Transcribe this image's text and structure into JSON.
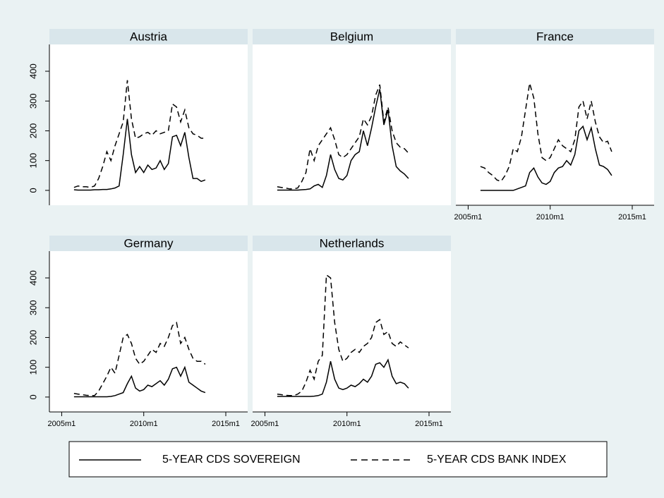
{
  "chart_data": [
    {
      "type": "line",
      "title": "Austria",
      "x": [
        549,
        552,
        555,
        558,
        561,
        564,
        567,
        570,
        573,
        576,
        579,
        582,
        585,
        588,
        591,
        594,
        597,
        600,
        603,
        606,
        609,
        612,
        615,
        618,
        621,
        624,
        627,
        630,
        633,
        636,
        639,
        642,
        645
      ],
      "xlim": [
        531,
        676
      ],
      "ylim": [
        -50,
        490
      ],
      "yticks": [
        0,
        100,
        200,
        300,
        400
      ],
      "series": [
        {
          "name": "5-YEAR CDS SOVEREIGN",
          "color": "#000000",
          "dashed": false,
          "values": [
            2,
            1,
            1,
            1,
            1,
            2,
            2,
            3,
            3,
            5,
            8,
            15,
            120,
            240,
            120,
            60,
            80,
            60,
            85,
            70,
            75,
            100,
            70,
            90,
            180,
            185,
            150,
            195,
            110,
            40,
            40,
            30,
            35
          ]
        },
        {
          "name": "5-YEAR CDS BANK INDEX",
          "color": "#000000",
          "dashed": true,
          "values": [
            10,
            15,
            12,
            12,
            10,
            15,
            40,
            80,
            130,
            100,
            150,
            190,
            230,
            370,
            240,
            175,
            180,
            190,
            195,
            185,
            200,
            190,
            195,
            200,
            290,
            280,
            230,
            270,
            210,
            190,
            185,
            175,
            175
          ]
        }
      ]
    },
    {
      "type": "line",
      "title": "Belgium",
      "x": [
        549,
        552,
        555,
        558,
        561,
        564,
        567,
        570,
        573,
        576,
        579,
        582,
        585,
        588,
        591,
        594,
        597,
        600,
        603,
        606,
        609,
        612,
        615,
        618,
        621,
        624,
        627,
        630,
        633,
        636,
        639,
        642,
        645
      ],
      "xlim": [
        531,
        676
      ],
      "ylim": [
        -50,
        490
      ],
      "series": [
        {
          "color": "#000000",
          "dashed": false,
          "values": [
            1,
            1,
            1,
            1,
            1,
            1,
            2,
            3,
            5,
            15,
            20,
            10,
            50,
            120,
            70,
            40,
            35,
            50,
            100,
            120,
            130,
            200,
            150,
            210,
            280,
            340,
            220,
            270,
            150,
            80,
            65,
            55,
            40
          ]
        },
        {
          "color": "#000000",
          "dashed": true,
          "values": [
            12,
            10,
            8,
            5,
            5,
            8,
            30,
            60,
            140,
            100,
            150,
            170,
            190,
            210,
            170,
            120,
            110,
            120,
            140,
            160,
            180,
            240,
            220,
            250,
            320,
            355,
            230,
            280,
            200,
            160,
            145,
            140,
            125
          ]
        }
      ]
    },
    {
      "type": "line",
      "title": "France",
      "x": [
        549,
        552,
        555,
        558,
        561,
        564,
        567,
        570,
        573,
        576,
        579,
        582,
        585,
        588,
        591,
        594,
        597,
        600,
        603,
        606,
        609,
        612,
        615,
        618,
        621,
        624,
        627,
        630,
        633,
        636,
        639,
        642,
        645
      ],
      "xlim": [
        531,
        676
      ],
      "ylim": [
        -50,
        490
      ],
      "xticks": [
        {
          "value": 540,
          "label": "2005m1"
        },
        {
          "value": 600,
          "label": "2010m1"
        },
        {
          "value": 660,
          "label": "2015m1"
        }
      ],
      "series": [
        {
          "color": "#000000",
          "dashed": false,
          "values": [
            0,
            0,
            0,
            0,
            0,
            0,
            0,
            0,
            0,
            5,
            10,
            15,
            60,
            75,
            45,
            25,
            20,
            30,
            60,
            75,
            80,
            100,
            85,
            120,
            200,
            215,
            170,
            210,
            140,
            85,
            80,
            70,
            50
          ]
        },
        {
          "color": "#000000",
          "dashed": true,
          "values": [
            80,
            75,
            60,
            50,
            35,
            30,
            50,
            80,
            140,
            130,
            180,
            270,
            360,
            310,
            190,
            110,
            100,
            110,
            140,
            170,
            150,
            140,
            130,
            170,
            280,
            300,
            240,
            300,
            230,
            180,
            160,
            165,
            130
          ]
        }
      ]
    },
    {
      "type": "line",
      "title": "Germany",
      "x": [
        549,
        552,
        555,
        558,
        561,
        564,
        567,
        570,
        573,
        576,
        579,
        582,
        585,
        588,
        591,
        594,
        597,
        600,
        603,
        606,
        609,
        612,
        615,
        618,
        621,
        624,
        627,
        630,
        633,
        636,
        639,
        642,
        645
      ],
      "xlim": [
        531,
        676
      ],
      "ylim": [
        -50,
        490
      ],
      "yticks": [
        0,
        100,
        200,
        300,
        400
      ],
      "xticks": [
        {
          "value": 540,
          "label": "2005m1"
        },
        {
          "value": 600,
          "label": "2010m1"
        },
        {
          "value": 660,
          "label": "2015m1"
        }
      ],
      "series": [
        {
          "color": "#000000",
          "dashed": false,
          "values": [
            1,
            1,
            1,
            1,
            1,
            1,
            1,
            1,
            1,
            2,
            5,
            10,
            15,
            45,
            70,
            30,
            20,
            25,
            40,
            35,
            45,
            55,
            40,
            60,
            95,
            100,
            70,
            100,
            50,
            40,
            30,
            20,
            15
          ]
        },
        {
          "color": "#000000",
          "dashed": true,
          "values": [
            12,
            10,
            8,
            6,
            5,
            5,
            20,
            45,
            70,
            100,
            80,
            140,
            200,
            210,
            180,
            130,
            110,
            120,
            140,
            160,
            150,
            180,
            170,
            200,
            240,
            250,
            180,
            200,
            160,
            130,
            120,
            120,
            110
          ]
        }
      ]
    },
    {
      "type": "line",
      "title": "Netherlands",
      "x": [
        549,
        552,
        555,
        558,
        561,
        564,
        567,
        570,
        573,
        576,
        579,
        582,
        585,
        588,
        591,
        594,
        597,
        600,
        603,
        606,
        609,
        612,
        615,
        618,
        621,
        624,
        627,
        630,
        633,
        636,
        639,
        642,
        645
      ],
      "xlim": [
        531,
        676
      ],
      "ylim": [
        -50,
        490
      ],
      "xticks": [
        {
          "value": 540,
          "label": "2005m1"
        },
        {
          "value": 600,
          "label": "2010m1"
        },
        {
          "value": 660,
          "label": "2015m1"
        }
      ],
      "series": [
        {
          "color": "#000000",
          "dashed": false,
          "values": [
            2,
            2,
            2,
            2,
            2,
            2,
            2,
            2,
            2,
            3,
            5,
            10,
            50,
            120,
            60,
            30,
            25,
            30,
            40,
            35,
            45,
            60,
            50,
            70,
            110,
            115,
            100,
            125,
            70,
            45,
            50,
            45,
            30
          ]
        },
        {
          "color": "#000000",
          "dashed": true,
          "values": [
            10,
            8,
            6,
            5,
            5,
            10,
            20,
            50,
            90,
            60,
            120,
            140,
            410,
            400,
            250,
            160,
            120,
            130,
            150,
            160,
            150,
            170,
            180,
            200,
            250,
            260,
            210,
            220,
            180,
            170,
            185,
            175,
            165
          ]
        }
      ]
    }
  ]
}
